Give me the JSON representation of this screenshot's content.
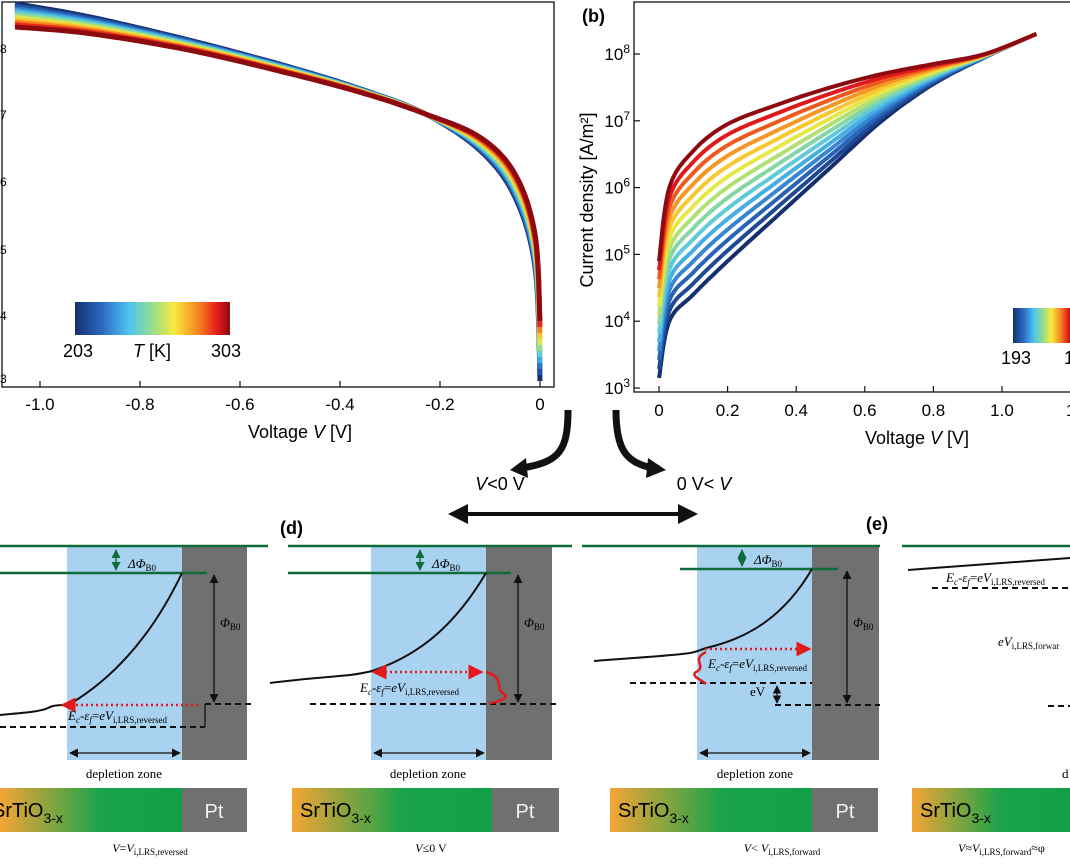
{
  "colors": {
    "green_line": "#0e6b3a",
    "gray_metal": "#707070",
    "depletion_blue": "#a8d2f0",
    "red_arrow": "#e31a1c",
    "orange": "#f4a535",
    "green": "#1aa34a"
  },
  "panel_a": {
    "xlabel_prefix": "Voltage ",
    "xlabel_var": "V",
    "xlabel_unit": " [V]",
    "x_ticks": [
      "-1.0",
      "-0.8",
      "-0.6",
      "-0.4",
      "-0.2",
      "0"
    ],
    "colorbar": {
      "min": "203",
      "max": "303",
      "var": "T",
      "unit": " [K]"
    }
  },
  "panel_b": {
    "letter": "(b)",
    "ylabel": "Current density [A/m²]",
    "xlabel_prefix": "Voltage ",
    "xlabel_var": "V",
    "xlabel_unit": " [V]",
    "x_ticks": [
      "0",
      "0.2",
      "0.4",
      "0.6",
      "0.8",
      "1.0",
      "1"
    ],
    "y_ticks": [
      {
        "base": "10",
        "exp": "8"
      },
      {
        "base": "10",
        "exp": "7"
      },
      {
        "base": "10",
        "exp": "6"
      },
      {
        "base": "10",
        "exp": "5"
      },
      {
        "base": "10",
        "exp": "4"
      },
      {
        "base": "10",
        "exp": "3"
      }
    ],
    "colorbar": {
      "min": "193",
      "max": "1"
    }
  },
  "chart_data": [
    {
      "type": "line",
      "panel": "a",
      "xlabel": "Voltage V [V]",
      "xlim": [
        -1.07,
        0.05
      ],
      "x_ticks": [
        -1.0,
        -0.8,
        -0.6,
        -0.4,
        -0.2,
        0
      ],
      "color_variable": "T [K]",
      "color_range": [
        203,
        303
      ],
      "series_count": 11,
      "shape_note": "log current density; curves converge near V = -0.23 V and drop steeply toward V = 0",
      "x": [
        -1.05,
        -0.9,
        -0.7,
        -0.5,
        -0.35,
        -0.23,
        -0.12,
        -0.05,
        -0.01,
        0
      ],
      "series_low_T": [
        8.65,
        8.45,
        8.1,
        7.7,
        7.35,
        7.0,
        6.45,
        5.75,
        4.7,
        3.0
      ],
      "series_high_T": [
        8.3,
        8.2,
        7.95,
        7.6,
        7.3,
        7.0,
        6.65,
        6.1,
        5.2,
        3.9
      ]
    },
    {
      "type": "line",
      "panel": "b",
      "xlabel": "Voltage V [V]",
      "ylabel": "Current density [A/m²]",
      "yscale": "log",
      "ylim": [
        1000,
        300000000
      ],
      "xlim": [
        -0.07,
        1.15
      ],
      "x_ticks": [
        0,
        0.2,
        0.4,
        0.6,
        0.8,
        1.0
      ],
      "color_variable": "T [K]",
      "series_count": 14,
      "x": [
        0,
        0.03,
        0.1,
        0.2,
        0.35,
        0.5,
        0.65,
        0.8,
        0.95,
        1.1
      ],
      "series_low_T_log10": [
        3.15,
        4.0,
        4.4,
        4.9,
        5.6,
        6.3,
        7.0,
        7.55,
        7.95,
        8.3
      ],
      "series_high_T_log10": [
        4.9,
        6.0,
        6.55,
        6.95,
        7.25,
        7.5,
        7.7,
        7.85,
        8.0,
        8.3
      ]
    }
  ],
  "mid": {
    "left_label": {
      "V": "V",
      "rest": "<0 V"
    },
    "right_label": {
      "pre": "0 V< ",
      "V": "V"
    }
  },
  "band": {
    "delta_phi": {
      "sym": "ΔΦ",
      "sub": "B0"
    },
    "phi": {
      "sym": "Φ",
      "sub": "B0"
    },
    "depletion": "depletion zone",
    "srtio": {
      "main": "SrTiO",
      "sub": "3-x"
    },
    "pt": "Pt",
    "ec_ef": {
      "Ec": "E",
      "c": "c",
      "dash": "-",
      "eps": "ε",
      "f": "f",
      "eq": "=",
      "eV": "eV"
    },
    "sub_rev": "i,LRS,reversed",
    "sub_fwd": "i,LRS,forward",
    "eV_label": "eV",
    "panel_d_letter": "(d)",
    "panel_e_letter": "(e)",
    "cap_c": {
      "V": "V",
      "eq": "=",
      "V2": "V",
      "sub": "i,LRS,reversed"
    },
    "cap_d": {
      "V": "V",
      "rest": "≤0 V"
    },
    "cap_e": {
      "V": "V",
      "mid": "< ",
      "V2": "V",
      "sub": "i,LRS,forward"
    },
    "cap_f": {
      "V": "V",
      "mid": "≈",
      "V2": "V",
      "sub": "i,LRS,forward",
      "tail": "≈φ"
    },
    "eV_fwd": {
      "e": "eV",
      "sub": "i,LRS,forwar"
    }
  }
}
